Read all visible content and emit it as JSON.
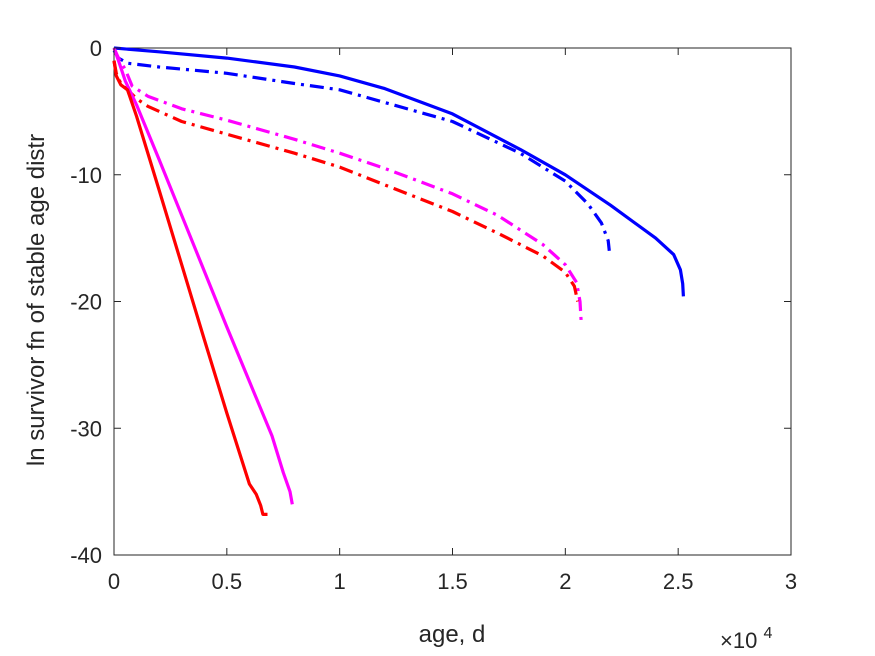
{
  "chart_data": {
    "type": "line",
    "xlabel": "age, d",
    "ylabel": "ln survivor fn of stable age distr",
    "x_exponent_base": "×10",
    "x_exponent_power": "4",
    "xlim": [
      0,
      30000
    ],
    "ylim": [
      -40,
      0
    ],
    "xticks": [
      0,
      5000,
      10000,
      15000,
      20000,
      25000,
      30000
    ],
    "xtick_labels": [
      "0",
      "0.5",
      "1",
      "1.5",
      "2",
      "2.5",
      "3"
    ],
    "yticks": [
      -40,
      -30,
      -20,
      -10,
      0
    ],
    "ytick_labels": [
      "-40",
      "-30",
      "-20",
      "-10",
      "0"
    ],
    "grid": false,
    "series": [
      {
        "color": "#0000ff",
        "style": "solid",
        "x": [
          0,
          2000,
          5000,
          8000,
          10000,
          12000,
          15000,
          18000,
          20000,
          22000,
          24000,
          24800,
          25100,
          25200,
          25230
        ],
        "y": [
          0,
          -0.3,
          -0.8,
          -1.5,
          -2.2,
          -3.2,
          -5.2,
          -8.0,
          -10.0,
          -12.4,
          -15.0,
          -16.3,
          -17.5,
          -18.6,
          -19.6
        ]
      },
      {
        "color": "#0000ff",
        "style": "dashdot",
        "x": [
          0,
          200,
          600,
          2000,
          5000,
          8000,
          10000,
          12000,
          15000,
          18000,
          20000,
          21000,
          21600,
          21900,
          21950
        ],
        "y": [
          -0.2,
          -0.8,
          -1.2,
          -1.5,
          -2.0,
          -2.8,
          -3.3,
          -4.3,
          -5.8,
          -8.3,
          -10.5,
          -12.3,
          -13.8,
          -15.2,
          -16.0
        ]
      },
      {
        "color": "#ff00ff",
        "style": "dashdot",
        "x": [
          0,
          200,
          500,
          800,
          1500,
          3000,
          5000,
          8000,
          10000,
          12000,
          15000,
          17000,
          19000,
          20000,
          20500,
          20650,
          20700
        ],
        "y": [
          0,
          -0.8,
          -1.7,
          -3.0,
          -3.8,
          -4.8,
          -5.7,
          -7.2,
          -8.3,
          -9.5,
          -11.5,
          -13.2,
          -15.5,
          -17.1,
          -18.5,
          -20.0,
          -21.5
        ]
      },
      {
        "color": "#ff0000",
        "style": "dashdot",
        "x": [
          0,
          100,
          300,
          600,
          1000,
          1500,
          3000,
          5000,
          8000,
          10000,
          12000,
          15000,
          17000,
          19000,
          20000,
          20400,
          20550
        ],
        "y": [
          -1.0,
          -2.0,
          -2.8,
          -3.3,
          -4.0,
          -4.6,
          -5.8,
          -6.8,
          -8.3,
          -9.4,
          -10.8,
          -12.9,
          -14.6,
          -16.4,
          -17.7,
          -18.8,
          -20.0
        ]
      },
      {
        "color": "#ff00ff",
        "style": "solid",
        "x": [
          0,
          200,
          500,
          1000,
          2000,
          3000,
          4000,
          5000,
          6000,
          7000,
          7500,
          7800,
          7900
        ],
        "y": [
          0,
          -1.0,
          -2.6,
          -4.5,
          -8.8,
          -13.2,
          -17.6,
          -22.0,
          -26.3,
          -30.6,
          -33.5,
          -35.0,
          -36.0
        ]
      },
      {
        "color": "#ff0000",
        "style": "solid",
        "x": [
          0,
          100,
          300,
          600,
          1000,
          2000,
          3000,
          4000,
          5000,
          6000,
          6300,
          6500,
          6600,
          6800
        ],
        "y": [
          -1.0,
          -2.2,
          -2.9,
          -3.3,
          -5.4,
          -11.2,
          -17.1,
          -23.0,
          -28.8,
          -34.4,
          -35.2,
          -36.1,
          -36.8,
          -36.8
        ]
      }
    ]
  }
}
